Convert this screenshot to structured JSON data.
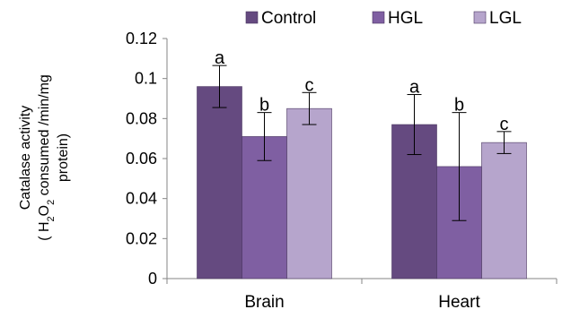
{
  "chart_data": {
    "type": "bar",
    "categories": [
      "Brain",
      "Heart"
    ],
    "series": [
      {
        "name": "Control",
        "color": "#654a80",
        "values": [
          0.096,
          0.077
        ],
        "errors": [
          0.0105,
          0.015
        ],
        "labels": [
          "a",
          "a"
        ]
      },
      {
        "name": "HGL",
        "color": "#7f5fa2",
        "values": [
          0.071,
          0.056
        ],
        "errors": [
          0.012,
          0.027
        ],
        "labels": [
          "b",
          "b"
        ]
      },
      {
        "name": "LGL",
        "color": "#b6a5cc",
        "values": [
          0.085,
          0.068
        ],
        "errors": [
          0.008,
          0.0055
        ],
        "labels": [
          "c",
          "c"
        ]
      }
    ],
    "ylabel_line1": "Catalase activity",
    "ylabel_line2_parts": [
      "( H",
      "2",
      "O",
      "2",
      " consumed /min/mg"
    ],
    "ylabel_line3": "protein)",
    "ylim": [
      0,
      0.12
    ],
    "yticks": [
      "0",
      "0.02",
      "0.04",
      "0.06",
      "0.08",
      "0.1",
      "0.12"
    ],
    "grid": false,
    "legend_position": "top"
  }
}
